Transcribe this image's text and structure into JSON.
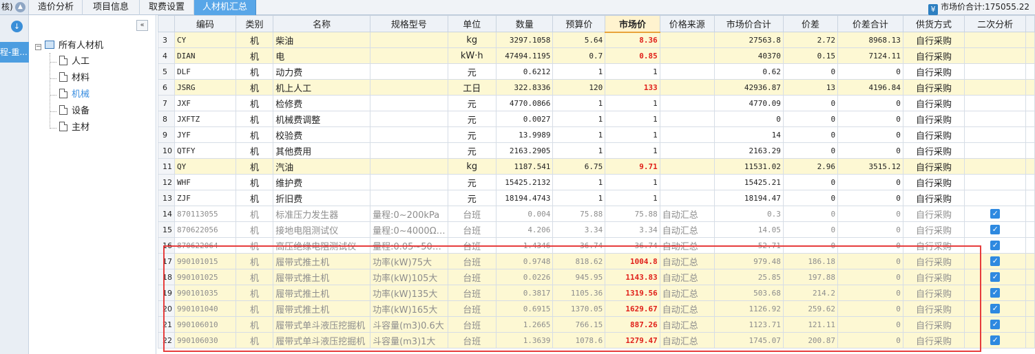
{
  "topbar": {
    "left_label": "核)",
    "tabs": [
      {
        "label": "造价分析"
      },
      {
        "label": "项目信息"
      },
      {
        "label": "取费设置"
      },
      {
        "label": "人材机汇总"
      }
    ],
    "total_label": "市场价合计:175055.22"
  },
  "rail": {
    "item_label": "程-重..."
  },
  "tree": {
    "root": "所有人材机",
    "children": [
      "人工",
      "材料",
      "机械",
      "设备",
      "主材"
    ],
    "selected": "机械"
  },
  "grid": {
    "columns": [
      "编码",
      "类别",
      "名称",
      "规格型号",
      "单位",
      "数量",
      "预算价",
      "市场价",
      "价格来源",
      "市场价合计",
      "价差",
      "价差合计",
      "供货方式",
      "二次分析"
    ],
    "rows": [
      {
        "n": "3",
        "code": "CY",
        "cat": "机",
        "name": "柴油",
        "spec": "",
        "unit": "kg",
        "qty": "3297.1058",
        "budget": "5.64",
        "market": "8.36",
        "source": "",
        "mtotal": "27563.8",
        "diff": "2.72",
        "dtotal": "8968.13",
        "supply": "自行采购",
        "check": false,
        "style": "yel",
        "mred": true
      },
      {
        "n": "4",
        "code": "DIAN",
        "cat": "机",
        "name": "电",
        "spec": "",
        "unit": "kW·h",
        "qty": "47494.1195",
        "budget": "0.7",
        "market": "0.85",
        "source": "",
        "mtotal": "40370",
        "diff": "0.15",
        "dtotal": "7124.11",
        "supply": "自行采购",
        "check": false,
        "style": "yel",
        "mred": true
      },
      {
        "n": "5",
        "code": "DLF",
        "cat": "机",
        "name": "动力费",
        "spec": "",
        "unit": "元",
        "qty": "0.6212",
        "budget": "1",
        "market": "1",
        "source": "",
        "mtotal": "0.62",
        "diff": "0",
        "dtotal": "0",
        "supply": "自行采购",
        "check": false,
        "style": "",
        "mred": false
      },
      {
        "n": "6",
        "code": "JSRG",
        "cat": "机",
        "name": "机上人工",
        "spec": "",
        "unit": "工日",
        "qty": "322.8336",
        "budget": "120",
        "market": "133",
        "source": "",
        "mtotal": "42936.87",
        "diff": "13",
        "dtotal": "4196.84",
        "supply": "自行采购",
        "check": false,
        "style": "yel",
        "mred": true
      },
      {
        "n": "7",
        "code": "JXF",
        "cat": "机",
        "name": "检修费",
        "spec": "",
        "unit": "元",
        "qty": "4770.0866",
        "budget": "1",
        "market": "1",
        "source": "",
        "mtotal": "4770.09",
        "diff": "0",
        "dtotal": "0",
        "supply": "自行采购",
        "check": false,
        "style": "",
        "mred": false
      },
      {
        "n": "8",
        "code": "JXFTZ",
        "cat": "机",
        "name": "机械费调整",
        "spec": "",
        "unit": "元",
        "qty": "0.0027",
        "budget": "1",
        "market": "1",
        "source": "",
        "mtotal": "0",
        "diff": "0",
        "dtotal": "0",
        "supply": "自行采购",
        "check": false,
        "style": "",
        "mred": false
      },
      {
        "n": "9",
        "code": "JYF",
        "cat": "机",
        "name": "校验费",
        "spec": "",
        "unit": "元",
        "qty": "13.9989",
        "budget": "1",
        "market": "1",
        "source": "",
        "mtotal": "14",
        "diff": "0",
        "dtotal": "0",
        "supply": "自行采购",
        "check": false,
        "style": "",
        "mred": false
      },
      {
        "n": "10",
        "code": "QTFY",
        "cat": "机",
        "name": "其他费用",
        "spec": "",
        "unit": "元",
        "qty": "2163.2905",
        "budget": "1",
        "market": "1",
        "source": "",
        "mtotal": "2163.29",
        "diff": "0",
        "dtotal": "0",
        "supply": "自行采购",
        "check": false,
        "style": "",
        "mred": false
      },
      {
        "n": "11",
        "code": "QY",
        "cat": "机",
        "name": "汽油",
        "spec": "",
        "unit": "kg",
        "qty": "1187.541",
        "budget": "6.75",
        "market": "9.71",
        "source": "",
        "mtotal": "11531.02",
        "diff": "2.96",
        "dtotal": "3515.12",
        "supply": "自行采购",
        "check": false,
        "style": "yel",
        "mred": true
      },
      {
        "n": "12",
        "code": "WHF",
        "cat": "机",
        "name": "维护费",
        "spec": "",
        "unit": "元",
        "qty": "15425.2132",
        "budget": "1",
        "market": "1",
        "source": "",
        "mtotal": "15425.21",
        "diff": "0",
        "dtotal": "0",
        "supply": "自行采购",
        "check": false,
        "style": "",
        "mred": false
      },
      {
        "n": "13",
        "code": "ZJF",
        "cat": "机",
        "name": "折旧费",
        "spec": "",
        "unit": "元",
        "qty": "18194.4743",
        "budget": "1",
        "market": "1",
        "source": "",
        "mtotal": "18194.47",
        "diff": "0",
        "dtotal": "0",
        "supply": "自行采购",
        "check": false,
        "style": "",
        "mred": false
      },
      {
        "n": "14",
        "code": "870113055",
        "cat": "机",
        "name": "标准压力发生器",
        "spec": "量程:0~200kPa",
        "unit": "台班",
        "qty": "0.004",
        "budget": "75.88",
        "market": "75.88",
        "source": "自动汇总",
        "mtotal": "0.3",
        "diff": "0",
        "dtotal": "0",
        "supply": "自行采购",
        "check": true,
        "style": "auto",
        "mred": false
      },
      {
        "n": "15",
        "code": "870622056",
        "cat": "机",
        "name": "接地电阻测试仪",
        "spec": "量程:0~4000Ω…",
        "unit": "台班",
        "qty": "4.206",
        "budget": "3.34",
        "market": "3.34",
        "source": "自动汇总",
        "mtotal": "14.05",
        "diff": "0",
        "dtotal": "0",
        "supply": "自行采购",
        "check": true,
        "style": "auto",
        "mred": false
      },
      {
        "n": "16",
        "code": "870622064",
        "cat": "机",
        "name": "高压绝缘电阻测试仪",
        "spec": "量程:0.05~50…",
        "unit": "台班",
        "qty": "1.4346",
        "budget": "36.74",
        "market": "36.74",
        "source": "自动汇总",
        "mtotal": "52.71",
        "diff": "0",
        "dtotal": "0",
        "supply": "自行采购",
        "check": true,
        "style": "auto",
        "mred": false
      },
      {
        "n": "17",
        "code": "990101015",
        "cat": "机",
        "name": "履带式推土机",
        "spec": "功率(kW)75大",
        "unit": "台班",
        "qty": "0.9748",
        "budget": "818.62",
        "market": "1004.8",
        "source": "自动汇总",
        "mtotal": "979.48",
        "diff": "186.18",
        "dtotal": "0",
        "supply": "自行采购",
        "check": true,
        "style": "yel auto",
        "mred": true
      },
      {
        "n": "18",
        "code": "990101025",
        "cat": "机",
        "name": "履带式推土机",
        "spec": "功率(kW)105大",
        "unit": "台班",
        "qty": "0.0226",
        "budget": "945.95",
        "market": "1143.83",
        "source": "自动汇总",
        "mtotal": "25.85",
        "diff": "197.88",
        "dtotal": "0",
        "supply": "自行采购",
        "check": true,
        "style": "yel auto",
        "mred": true
      },
      {
        "n": "19",
        "code": "990101035",
        "cat": "机",
        "name": "履带式推土机",
        "spec": "功率(kW)135大",
        "unit": "台班",
        "qty": "0.3817",
        "budget": "1105.36",
        "market": "1319.56",
        "source": "自动汇总",
        "mtotal": "503.68",
        "diff": "214.2",
        "dtotal": "0",
        "supply": "自行采购",
        "check": true,
        "style": "yel auto",
        "mred": true
      },
      {
        "n": "20",
        "code": "990101040",
        "cat": "机",
        "name": "履带式推土机",
        "spec": "功率(kW)165大",
        "unit": "台班",
        "qty": "0.6915",
        "budget": "1370.05",
        "market": "1629.67",
        "source": "自动汇总",
        "mtotal": "1126.92",
        "diff": "259.62",
        "dtotal": "0",
        "supply": "自行采购",
        "check": true,
        "style": "yel auto",
        "mred": true
      },
      {
        "n": "21",
        "code": "990106010",
        "cat": "机",
        "name": "履带式单斗液压挖掘机",
        "spec": "斗容量(m3)0.6大",
        "unit": "台班",
        "qty": "1.2665",
        "budget": "766.15",
        "market": "887.26",
        "source": "自动汇总",
        "mtotal": "1123.71",
        "diff": "121.11",
        "dtotal": "0",
        "supply": "自行采购",
        "check": true,
        "style": "yel auto",
        "mred": true
      },
      {
        "n": "22",
        "code": "990106030",
        "cat": "机",
        "name": "履带式单斗液压挖掘机",
        "spec": "斗容量(m3)1大",
        "unit": "台班",
        "qty": "1.3639",
        "budget": "1078.6",
        "market": "1279.47",
        "source": "自动汇总",
        "mtotal": "1745.07",
        "diff": "200.87",
        "dtotal": "0",
        "supply": "自行采购",
        "check": true,
        "style": "yel auto",
        "mred": true
      }
    ]
  },
  "colors": {
    "accent": "#58a6e8",
    "highlight_row": "#fdf8d3",
    "market_red": "#e0201a",
    "annotation_box": "#e63c3c"
  }
}
